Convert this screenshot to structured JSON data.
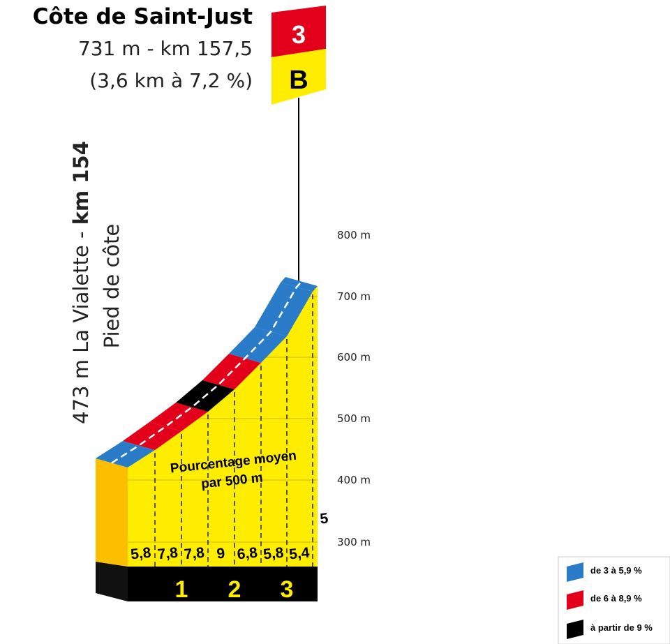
{
  "header": {
    "title": "Côte de Saint-Just",
    "summit": "731 m - km 157,5",
    "summary": "(3,6 km à 7,2 %)"
  },
  "category": {
    "rank": "3",
    "class": "B"
  },
  "start": {
    "place": "473 m La Vialette - ",
    "km": "km 154",
    "note": "Pied de côte"
  },
  "altitude_labels": [
    "800 m",
    "700 m",
    "600 m",
    "500 m",
    "400 m",
    "300 m"
  ],
  "caption": [
    "Pourcentage moyen",
    "par 500 m"
  ],
  "segments": [
    "5,8",
    "7,8",
    "7,8",
    "9",
    "6,8",
    "5,8",
    "5,4",
    "5"
  ],
  "km_markers": [
    "1",
    "2",
    "3"
  ],
  "legend": [
    "de 3 à 5,9 %",
    "de 6 à 8,9 %",
    "à partir de 9 %"
  ]
}
